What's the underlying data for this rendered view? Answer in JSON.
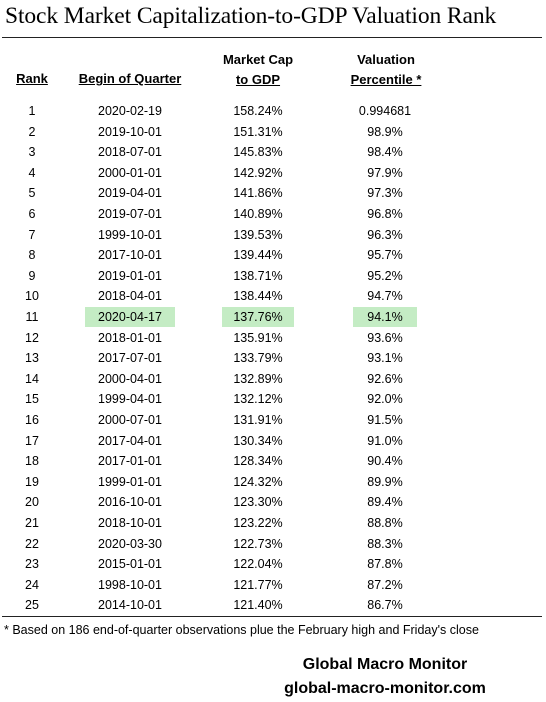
{
  "title": "Stock Market Capitalization-to-GDP Valuation Rank",
  "headers": {
    "rank": "Rank",
    "quarter": "Begin of Quarter",
    "mktcap_line1": "Market Cap",
    "mktcap_line2": "to GDP",
    "pct_line1": "Valuation",
    "pct_line2": "Percentile *"
  },
  "highlight_color": "#c4ecc4",
  "rows": [
    {
      "rank": "1",
      "quarter": "2020-02-19",
      "mktcap": "158.24%",
      "pct": "0.994681",
      "highlight": false
    },
    {
      "rank": "2",
      "quarter": "2019-10-01",
      "mktcap": "151.31%",
      "pct": "98.9%",
      "highlight": false
    },
    {
      "rank": "3",
      "quarter": "2018-07-01",
      "mktcap": "145.83%",
      "pct": "98.4%",
      "highlight": false
    },
    {
      "rank": "4",
      "quarter": "2000-01-01",
      "mktcap": "142.92%",
      "pct": "97.9%",
      "highlight": false
    },
    {
      "rank": "5",
      "quarter": "2019-04-01",
      "mktcap": "141.86%",
      "pct": "97.3%",
      "highlight": false
    },
    {
      "rank": "6",
      "quarter": "2019-07-01",
      "mktcap": "140.89%",
      "pct": "96.8%",
      "highlight": false
    },
    {
      "rank": "7",
      "quarter": "1999-10-01",
      "mktcap": "139.53%",
      "pct": "96.3%",
      "highlight": false
    },
    {
      "rank": "8",
      "quarter": "2017-10-01",
      "mktcap": "139.44%",
      "pct": "95.7%",
      "highlight": false
    },
    {
      "rank": "9",
      "quarter": "2019-01-01",
      "mktcap": "138.71%",
      "pct": "95.2%",
      "highlight": false
    },
    {
      "rank": "10",
      "quarter": "2018-04-01",
      "mktcap": "138.44%",
      "pct": "94.7%",
      "highlight": false
    },
    {
      "rank": "11",
      "quarter": "2020-04-17",
      "mktcap": "137.76%",
      "pct": "94.1%",
      "highlight": true
    },
    {
      "rank": "12",
      "quarter": "2018-01-01",
      "mktcap": "135.91%",
      "pct": "93.6%",
      "highlight": false
    },
    {
      "rank": "13",
      "quarter": "2017-07-01",
      "mktcap": "133.79%",
      "pct": "93.1%",
      "highlight": false
    },
    {
      "rank": "14",
      "quarter": "2000-04-01",
      "mktcap": "132.89%",
      "pct": "92.6%",
      "highlight": false
    },
    {
      "rank": "15",
      "quarter": "1999-04-01",
      "mktcap": "132.12%",
      "pct": "92.0%",
      "highlight": false
    },
    {
      "rank": "16",
      "quarter": "2000-07-01",
      "mktcap": "131.91%",
      "pct": "91.5%",
      "highlight": false
    },
    {
      "rank": "17",
      "quarter": "2017-04-01",
      "mktcap": "130.34%",
      "pct": "91.0%",
      "highlight": false
    },
    {
      "rank": "18",
      "quarter": "2017-01-01",
      "mktcap": "128.34%",
      "pct": "90.4%",
      "highlight": false
    },
    {
      "rank": "19",
      "quarter": "1999-01-01",
      "mktcap": "124.32%",
      "pct": "89.9%",
      "highlight": false
    },
    {
      "rank": "20",
      "quarter": "2016-10-01",
      "mktcap": "123.30%",
      "pct": "89.4%",
      "highlight": false
    },
    {
      "rank": "21",
      "quarter": "2018-10-01",
      "mktcap": "123.22%",
      "pct": "88.8%",
      "highlight": false
    },
    {
      "rank": "22",
      "quarter": "2020-03-30",
      "mktcap": "122.73%",
      "pct": "88.3%",
      "highlight": false
    },
    {
      "rank": "23",
      "quarter": "2015-01-01",
      "mktcap": "122.04%",
      "pct": "87.8%",
      "highlight": false
    },
    {
      "rank": "24",
      "quarter": "1998-10-01",
      "mktcap": "121.77%",
      "pct": "87.2%",
      "highlight": false
    },
    {
      "rank": "25",
      "quarter": "2014-10-01",
      "mktcap": "121.40%",
      "pct": "86.7%",
      "highlight": false
    }
  ],
  "footnote": "* Based on 186 end-of-quarter observations plue the February high and Friday's close",
  "brand": {
    "name": "Global Macro Monitor",
    "site": "global-macro-monitor.com"
  }
}
